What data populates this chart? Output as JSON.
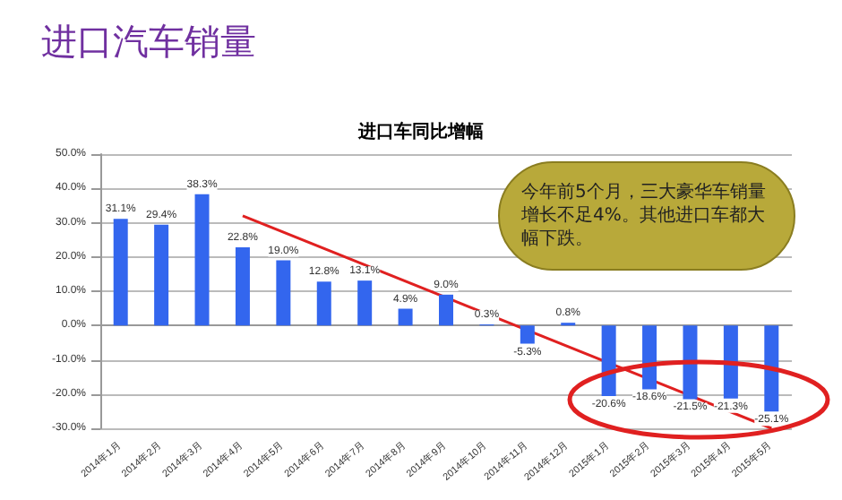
{
  "chart_data": {
    "type": "bar",
    "title": "进口汽车销量",
    "subtitle": "进口车同比增幅",
    "categories": [
      "2014年1月",
      "2014年2月",
      "2014年3月",
      "2014年4月",
      "2014年5月",
      "2014年6月",
      "2014年7月",
      "2014年8月",
      "2014年9月",
      "2014年10月",
      "2014年11月",
      "2014年12月",
      "2015年1月",
      "2015年2月",
      "2015年3月",
      "2015年4月",
      "2015年5月"
    ],
    "series": [
      {
        "color": "#3366ee",
        "values": [
          31.1,
          29.4,
          38.3,
          22.8,
          19.0,
          12.8,
          13.1,
          4.9,
          9.0,
          0.3,
          -5.3,
          0.8,
          -20.6,
          -18.6,
          -21.5,
          -21.3,
          -25.1
        ],
        "value_labels": [
          "31.1%",
          "29.4%",
          "38.3%",
          "22.8%",
          "19.0%",
          "12.8%",
          "13.1%",
          "4.9%",
          "9.0%",
          "0.3%",
          "-5.3%",
          "0.8%",
          "-20.6%",
          "-18.6%",
          "-21.5%",
          "-21.3%",
          "-25.1%"
        ]
      },
      {
        "type": "line",
        "color": "#e02020",
        "x": [
          "2014年4月",
          "2015年5月"
        ],
        "values": [
          32,
          -30
        ]
      }
    ],
    "ylim": [
      -30,
      50
    ],
    "yticks": [
      {
        "value": -30,
        "label": "-30.0%"
      },
      {
        "value": -20,
        "label": "-20.0%"
      },
      {
        "value": -10,
        "label": "-10.0%"
      },
      {
        "value": 0,
        "label": "0.0%"
      },
      {
        "value": 10,
        "label": "10.0%"
      },
      {
        "value": 20,
        "label": "20.0%"
      },
      {
        "value": 30,
        "label": "30.0%"
      },
      {
        "value": 40,
        "label": "40.0%"
      },
      {
        "value": 50,
        "label": "50.0%"
      }
    ],
    "grid": "y",
    "annotations": [
      "今年前5个月，三大豪华车销量增长不足4%。其他进口车都大幅下跌。"
    ]
  }
}
